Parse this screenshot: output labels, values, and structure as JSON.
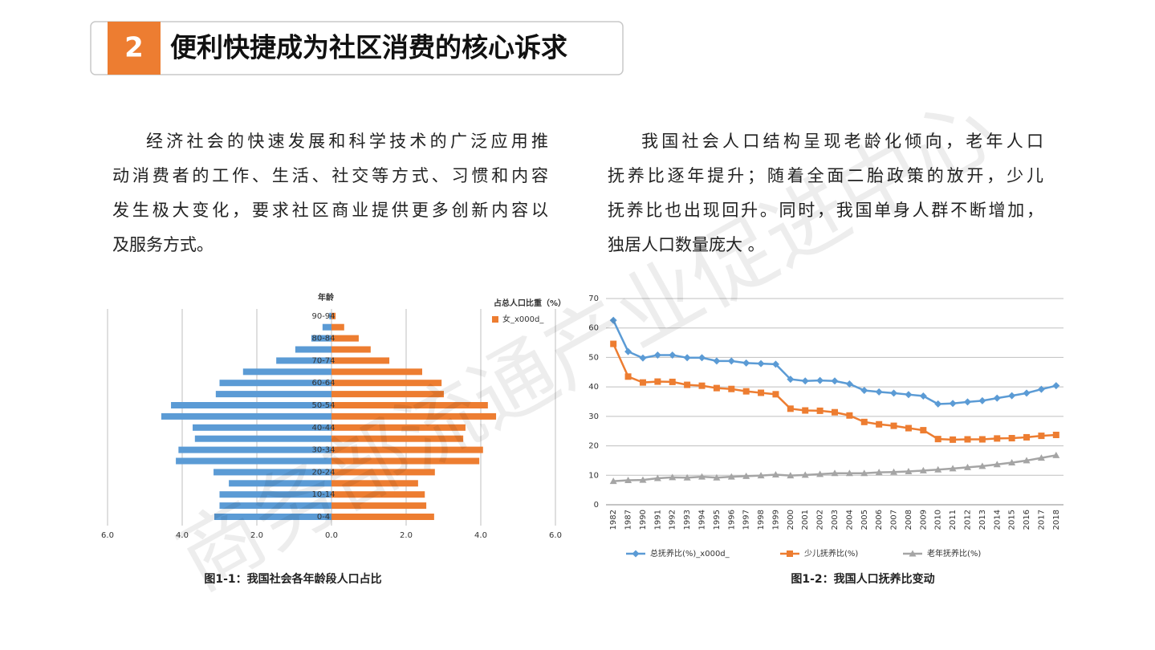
{
  "header": {
    "number": "2",
    "title": "便利快捷成为社区消费的核心诉求"
  },
  "paragraphs": [
    [
      "经济社会的快速发展和科学技术的广泛应用推",
      "动消费者的工作、生活、社交等方式、习惯和内容",
      "发生极大变化，要求社区商业提供更多创新内容以",
      "及服务方式。"
    ],
    [
      "我国社会人口结构呈现老龄化倾向，老年人口",
      "抚养比逐年提升；随着全面二胎政策的放开，少儿",
      "抚养比也出现回升。同时，我国单身人群不断增加，",
      "独居人口数量庞大 。"
    ]
  ],
  "watermark": "商务部流通产业促进中心",
  "chart_data": [
    {
      "type": "pyramid",
      "caption": "图1-1：我国社会各年龄段人口占比",
      "y_label": "年龄",
      "legend_title": "占总人口比重（%）",
      "categories": [
        "0-4",
        null,
        "10-14",
        null,
        "20-24",
        null,
        "30-34",
        null,
        "40-44",
        null,
        "50-54",
        null,
        "60-64",
        null,
        "70-74",
        null,
        "80-84",
        null,
        "90-94"
      ],
      "series": [
        {
          "side": "left",
          "color": "#5b9bd5",
          "values": [
            3.14,
            3.0,
            3.0,
            2.75,
            3.16,
            4.17,
            4.1,
            3.66,
            3.72,
            4.56,
            4.3,
            3.1,
            3.0,
            2.37,
            1.48,
            0.97,
            0.54,
            0.24,
            0.06
          ]
        },
        {
          "side": "right",
          "name": "女_x000d_",
          "color": "#ed7d31",
          "values": [
            2.75,
            2.54,
            2.5,
            2.32,
            2.77,
            3.96,
            4.06,
            3.53,
            3.59,
            4.41,
            4.19,
            3.01,
            2.95,
            2.43,
            1.55,
            1.05,
            0.73,
            0.34,
            0.11
          ]
        }
      ],
      "xlim": [
        0,
        6
      ],
      "xticks_left": [
        {
          "value": 6,
          "label": "6.0"
        },
        {
          "value": 4,
          "label": "4.0"
        },
        {
          "value": 2,
          "label": "2.0"
        }
      ],
      "xticks_right": [
        {
          "value": 0,
          "label": "0.0"
        },
        {
          "value": 2,
          "label": "2.0"
        },
        {
          "value": 4,
          "label": "4.0"
        },
        {
          "value": 6,
          "label": "6.0"
        }
      ],
      "grid": true,
      "legend": "top-right"
    },
    {
      "type": "line",
      "caption": "图1-2：我国人口抚养比变动",
      "categories": [
        "1982",
        "1987",
        "1990",
        "1991",
        "1992",
        "1993",
        "1994",
        "1995",
        "1996",
        "1997",
        "1998",
        "1999",
        "2000",
        "2001",
        "2002",
        "2003",
        "2004",
        "2005",
        "2006",
        "2007",
        "2008",
        "2009",
        "2010",
        "2011",
        "2012",
        "2013",
        "2014",
        "2015",
        "2016",
        "2017",
        "2018"
      ],
      "series": [
        {
          "name": "总抚养比(%)_x000d_",
          "color": "#5b9bd5",
          "marker": "diamond",
          "values": [
            62.6,
            52,
            49.8,
            50.8,
            50.8,
            49.9,
            49.9,
            48.8,
            48.8,
            48.1,
            47.9,
            47.7,
            42.6,
            42,
            42.2,
            42,
            41,
            38.8,
            38.3,
            37.9,
            37.4,
            36.9,
            34.2,
            34.4,
            34.9,
            35.3,
            36.2,
            37,
            37.9,
            39.2,
            40.4
          ]
        },
        {
          "name": "少儿抚养比(%)",
          "color": "#ed7d31",
          "marker": "square",
          "values": [
            54.6,
            43.5,
            41.5,
            41.8,
            41.7,
            40.7,
            40.4,
            39.6,
            39.3,
            38.5,
            38,
            37.5,
            32.6,
            32,
            31.9,
            31.4,
            30.3,
            28.1,
            27.3,
            26.8,
            26,
            25.3,
            22.3,
            22.1,
            22.2,
            22.2,
            22.5,
            22.6,
            22.9,
            23.4,
            23.7
          ]
        },
        {
          "name": "老年抚养比(%)",
          "color": "#a5a5a5",
          "marker": "triangle",
          "values": [
            8,
            8.3,
            8.4,
            9,
            9.3,
            9.2,
            9.5,
            9.2,
            9.5,
            9.7,
            9.9,
            10.2,
            9.9,
            10.1,
            10.4,
            10.7,
            10.7,
            10.7,
            11,
            11.1,
            11.3,
            11.6,
            11.9,
            12.3,
            12.7,
            13.1,
            13.7,
            14.3,
            15,
            15.9,
            16.8
          ]
        }
      ],
      "ylim": [
        0,
        70
      ],
      "yticks": [
        0,
        10,
        20,
        30,
        40,
        50,
        60,
        70
      ],
      "grid": true,
      "legend": "bottom"
    }
  ]
}
